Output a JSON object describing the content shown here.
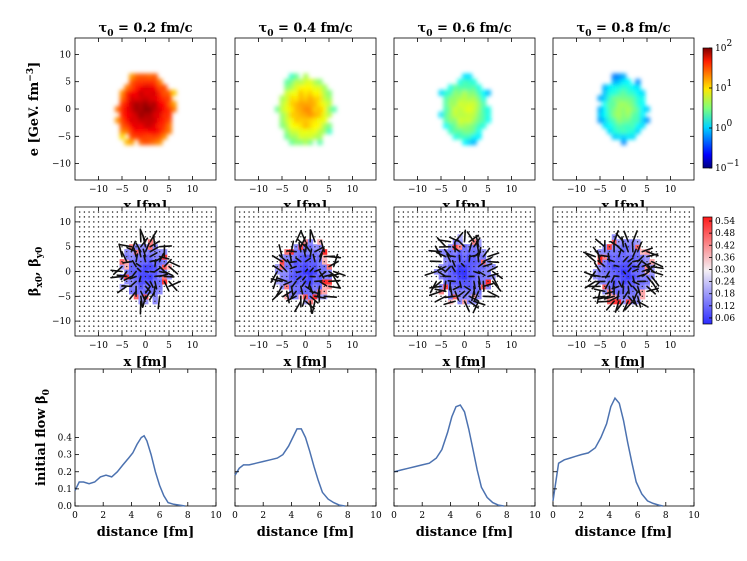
{
  "chart_data": [
    {
      "type": "heatmap",
      "row": "energy_density",
      "ylabel": "e [GeV. fm$^{-3}$]",
      "ylabel_parts": [
        "e [GeV. fm",
        "−3",
        "]"
      ],
      "xlabel": "x [fm]",
      "xlim": [
        -15,
        15
      ],
      "ylim": [
        -13,
        13
      ],
      "xticks": [
        -10,
        -5,
        0,
        5,
        10
      ],
      "xtick_labels": [
        "−10",
        "−5",
        "0",
        "5",
        "10"
      ],
      "yticks": [
        -10,
        -5,
        0,
        5,
        10
      ],
      "ytick_labels": [
        "−10",
        "−5",
        "0",
        "5",
        "10"
      ],
      "colorbar": {
        "scale": "log",
        "min": 0.1,
        "max": 100,
        "tick_values": [
          0.1,
          1,
          10,
          100
        ],
        "tick_labels": [
          [
            "10",
            "−1"
          ],
          [
            "10",
            "0"
          ],
          [
            "10",
            "1"
          ],
          [
            "10",
            "2"
          ]
        ],
        "colormap": "jet"
      },
      "panels": [
        {
          "title_parts": [
            "τ",
            "0",
            " = 0.2 fm/c"
          ],
          "tau0": 0.2,
          "peak": 80,
          "radius": 6.2
        },
        {
          "title_parts": [
            "τ",
            "0",
            " = 0.4 fm/c"
          ],
          "tau0": 0.4,
          "peak": 15,
          "radius": 5.8
        },
        {
          "title_parts": [
            "τ",
            "0",
            " = 0.6 fm/c"
          ],
          "tau0": 0.6,
          "peak": 6,
          "radius": 5.4
        },
        {
          "title_parts": [
            "τ",
            "0",
            " = 0.8 fm/c"
          ],
          "tau0": 0.8,
          "peak": 4,
          "radius": 5.2
        }
      ]
    },
    {
      "type": "heatmap",
      "row": "transverse_velocity",
      "ylabel_parts": [
        "β",
        "x0",
        ", β",
        "y0"
      ],
      "xlabel": "x [fm]",
      "xlim": [
        -15,
        15
      ],
      "ylim": [
        -13,
        13
      ],
      "xticks": [
        -10,
        -5,
        0,
        5,
        10
      ],
      "xtick_labels": [
        "−10",
        "−5",
        "0",
        "5",
        "10"
      ],
      "yticks": [
        -10,
        -5,
        0,
        5,
        10
      ],
      "ytick_labels": [
        "−10",
        "−5",
        "0",
        "5",
        "10"
      ],
      "colorbar": {
        "scale": "linear",
        "min": 0.03,
        "max": 0.56,
        "tick_values": [
          0.06,
          0.12,
          0.18,
          0.24,
          0.3,
          0.36,
          0.42,
          0.48,
          0.54
        ],
        "tick_labels": [
          "0.06",
          "0.12",
          "0.18",
          "0.24",
          "0.30",
          "0.36",
          "0.42",
          "0.48",
          "0.54"
        ],
        "colormap": "bwr"
      },
      "panels": [
        {
          "tau0": 0.2,
          "radius": 5.2
        },
        {
          "tau0": 0.4,
          "radius": 5.6
        },
        {
          "tau0": 0.6,
          "radius": 5.8
        },
        {
          "tau0": 0.8,
          "radius": 6.0
        }
      ]
    },
    {
      "type": "line",
      "row": "initial_flow",
      "ylabel_parts": [
        "initial flow β",
        "0"
      ],
      "xlabel": "distance [fm]",
      "xlim": [
        0,
        10
      ],
      "xticks": [
        0,
        2,
        4,
        6,
        8,
        10
      ],
      "xtick_labels": [
        "0",
        "2",
        "4",
        "6",
        "8",
        "10"
      ],
      "ylim": [
        0,
        0.8
      ],
      "yticks": [
        0.0,
        0.1,
        0.2,
        0.3,
        0.4
      ],
      "ytick_labels": [
        "0.0",
        "0.1",
        "0.2",
        "0.3",
        "0.4"
      ],
      "line_color": "#4c72b0",
      "series": [
        {
          "name": "τ₀ = 0.2 fm/c",
          "x": [
            0,
            0.3,
            0.6,
            1.0,
            1.4,
            1.8,
            2.2,
            2.6,
            3.0,
            3.4,
            3.8,
            4.1,
            4.4,
            4.7,
            4.9,
            5.1,
            5.4,
            5.7,
            6.0,
            6.3,
            6.6,
            7.0,
            7.4,
            7.8
          ],
          "values": [
            0.09,
            0.14,
            0.14,
            0.13,
            0.14,
            0.17,
            0.18,
            0.17,
            0.2,
            0.24,
            0.28,
            0.31,
            0.36,
            0.4,
            0.41,
            0.38,
            0.3,
            0.2,
            0.12,
            0.06,
            0.02,
            0.01,
            0.005,
            0.0
          ]
        },
        {
          "name": "τ₀ = 0.4 fm/c",
          "x": [
            0,
            0.3,
            0.6,
            1.0,
            1.5,
            2.0,
            2.5,
            3.0,
            3.4,
            3.8,
            4.1,
            4.4,
            4.7,
            5.0,
            5.3,
            5.6,
            5.9,
            6.2,
            6.6,
            7.0,
            7.4,
            7.8
          ],
          "values": [
            0.18,
            0.22,
            0.24,
            0.24,
            0.25,
            0.26,
            0.27,
            0.28,
            0.3,
            0.35,
            0.4,
            0.45,
            0.45,
            0.4,
            0.32,
            0.23,
            0.15,
            0.08,
            0.04,
            0.02,
            0.005,
            0.0
          ]
        },
        {
          "name": "τ₀ = 0.6 fm/c",
          "x": [
            0,
            0.5,
            1.0,
            1.5,
            2.0,
            2.5,
            3.0,
            3.4,
            3.8,
            4.1,
            4.4,
            4.7,
            5.0,
            5.3,
            5.6,
            5.9,
            6.2,
            6.6,
            7.0,
            7.4,
            7.8
          ],
          "values": [
            0.2,
            0.21,
            0.22,
            0.23,
            0.24,
            0.25,
            0.28,
            0.33,
            0.43,
            0.52,
            0.58,
            0.59,
            0.55,
            0.45,
            0.33,
            0.21,
            0.11,
            0.05,
            0.02,
            0.005,
            0.0
          ]
        },
        {
          "name": "τ₀ = 0.8 fm/c",
          "x": [
            0,
            0.4,
            0.8,
            1.2,
            1.6,
            2.0,
            2.5,
            3.0,
            3.4,
            3.8,
            4.1,
            4.4,
            4.7,
            5.0,
            5.3,
            5.6,
            5.9,
            6.3,
            6.7,
            7.1,
            7.5,
            7.8
          ],
          "values": [
            0.03,
            0.25,
            0.27,
            0.28,
            0.29,
            0.3,
            0.31,
            0.34,
            0.4,
            0.48,
            0.58,
            0.63,
            0.6,
            0.5,
            0.37,
            0.25,
            0.14,
            0.07,
            0.03,
            0.015,
            0.005,
            0.0
          ]
        }
      ]
    }
  ]
}
